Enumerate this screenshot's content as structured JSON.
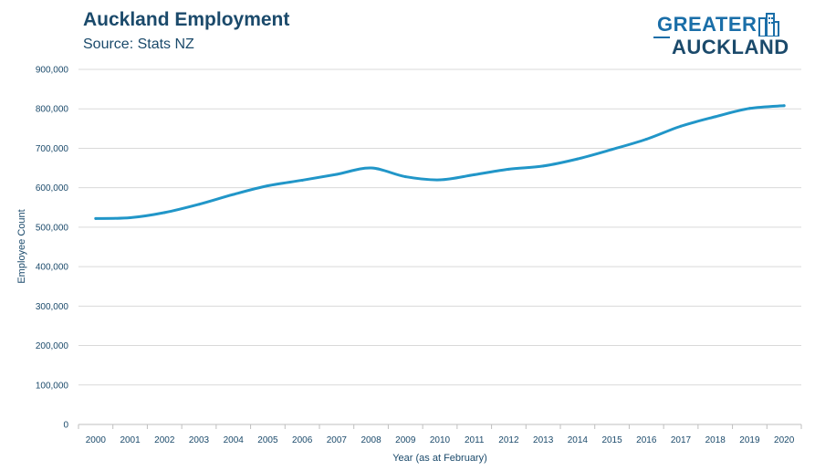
{
  "header": {
    "title": "Auckland Employment",
    "subtitle": "Source: Stats NZ"
  },
  "logo": {
    "line1": "GREATER",
    "line2": "AUCKLAND",
    "icon": "city-buildings-icon"
  },
  "colors": {
    "line": "#2196c8",
    "text": "#1b4a6b",
    "grid": "#d9d9d9",
    "logo_blue": "#1a6ea8"
  },
  "chart_data": {
    "type": "line",
    "title": "Auckland Employment",
    "subtitle": "Source: Stats NZ",
    "xlabel": "Year (as at February)",
    "ylabel": "Employee Count",
    "categories": [
      "2000",
      "2001",
      "2002",
      "2003",
      "2004",
      "2005",
      "2006",
      "2007",
      "2008",
      "2009",
      "2010",
      "2011",
      "2012",
      "2013",
      "2014",
      "2015",
      "2016",
      "2017",
      "2018",
      "2019",
      "2020"
    ],
    "series": [
      {
        "values": [
          522000,
          524000,
          537000,
          558000,
          583000,
          605000,
          619000,
          634000,
          650000,
          628000,
          620000,
          633000,
          647000,
          655000,
          673000,
          697000,
          723000,
          756000,
          780000,
          801000,
          808000
        ]
      }
    ],
    "ylim": [
      0,
      900000
    ],
    "yticks": [
      "0",
      "100,000",
      "200,000",
      "300,000",
      "400,000",
      "500,000",
      "600,000",
      "700,000",
      "800,000",
      "900,000"
    ],
    "grid": true,
    "legend": "none"
  }
}
